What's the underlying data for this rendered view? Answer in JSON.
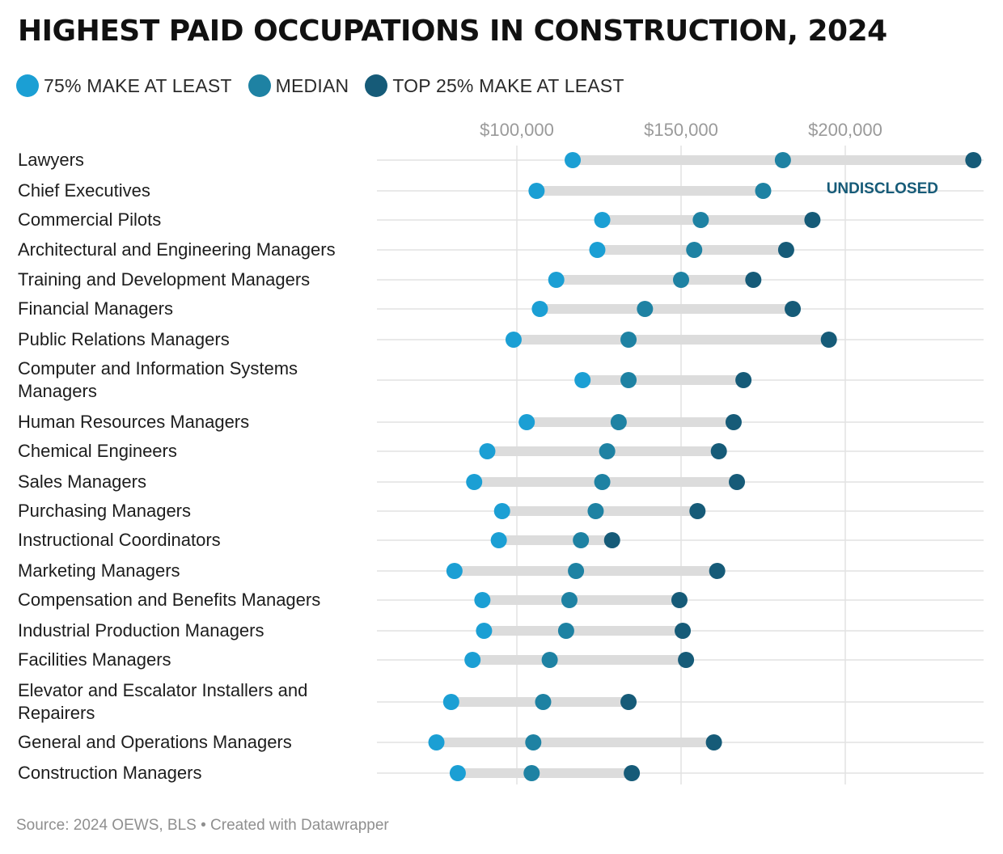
{
  "title": "HIGHEST PAID OCCUPATIONS IN CONSTRUCTION, 2024",
  "legend": {
    "items": [
      {
        "label": "75% MAKE AT LEAST",
        "color": "#1b9fd4"
      },
      {
        "label": "MEDIAN",
        "color": "#1e82a3"
      },
      {
        "label": "TOP 25% MAKE AT LEAST",
        "color": "#165b78"
      }
    ]
  },
  "source": "Source: 2024 OEWS, BLS • Created with Datawrapper",
  "colors": {
    "low": "#1b9fd4",
    "median": "#1e82a3",
    "high": "#165b78",
    "bar": "#dcdcdc",
    "grid": "#e2e2e2"
  },
  "chart_data": {
    "type": "dot-range",
    "title": "HIGHEST PAID OCCUPATIONS IN CONSTRUCTION, 2024",
    "xlim": [
      57000,
      243000
    ],
    "xticks": [
      {
        "value": 100000,
        "label": "$100,000"
      },
      {
        "value": 150000,
        "label": "$150,000"
      },
      {
        "value": 200000,
        "label": "$200,000"
      }
    ],
    "grid": true,
    "legend_position": "top-left",
    "series": [
      {
        "name": "75% MAKE AT LEAST",
        "key": "low"
      },
      {
        "name": "MEDIAN",
        "key": "median"
      },
      {
        "name": "TOP 25% MAKE AT LEAST",
        "key": "high"
      }
    ],
    "rows": [
      {
        "label": "Lawyers",
        "low": 117000,
        "median": 181000,
        "high": 239000
      },
      {
        "label": "Chief Executives",
        "low": 106000,
        "median": 175000,
        "high": null,
        "note": "UNDISCLOSED"
      },
      {
        "label": "Commercial Pilots",
        "low": 126000,
        "median": 156000,
        "high": 190000
      },
      {
        "label": "Architectural and Engineering Managers",
        "low": 124500,
        "median": 154000,
        "high": 182000
      },
      {
        "label": "Training and Development Managers",
        "low": 112000,
        "median": 150000,
        "high": 172000
      },
      {
        "label": "Financial Managers",
        "low": 107000,
        "median": 139000,
        "high": 184000
      },
      {
        "label": "Public Relations Managers",
        "low": 99000,
        "median": 134000,
        "high": 195000
      },
      {
        "label": "Computer and Information Systems Managers",
        "low": 120000,
        "median": 134000,
        "high": 169000
      },
      {
        "label": "Human Resources Managers",
        "low": 103000,
        "median": 131000,
        "high": 166000
      },
      {
        "label": "Chemical Engineers",
        "low": 91000,
        "median": 127500,
        "high": 161500
      },
      {
        "label": "Sales Managers",
        "low": 87000,
        "median": 126000,
        "high": 167000
      },
      {
        "label": "Purchasing Managers",
        "low": 95500,
        "median": 124000,
        "high": 155000
      },
      {
        "label": "Instructional Coordinators",
        "low": 94500,
        "median": 119500,
        "high": 129000
      },
      {
        "label": "Marketing Managers",
        "low": 81000,
        "median": 118000,
        "high": 161000
      },
      {
        "label": "Compensation and Benefits Managers",
        "low": 89500,
        "median": 116000,
        "high": 149500
      },
      {
        "label": "Industrial Production Managers",
        "low": 90000,
        "median": 115000,
        "high": 150500
      },
      {
        "label": "Facilities Managers",
        "low": 86500,
        "median": 110000,
        "high": 151500
      },
      {
        "label": "Elevator and Escalator Installers and Repairers",
        "low": 80000,
        "median": 108000,
        "high": 134000
      },
      {
        "label": "General and Operations Managers",
        "low": 75500,
        "median": 105000,
        "high": 160000
      },
      {
        "label": "Construction Managers",
        "low": 82000,
        "median": 104500,
        "high": 135000
      }
    ]
  }
}
